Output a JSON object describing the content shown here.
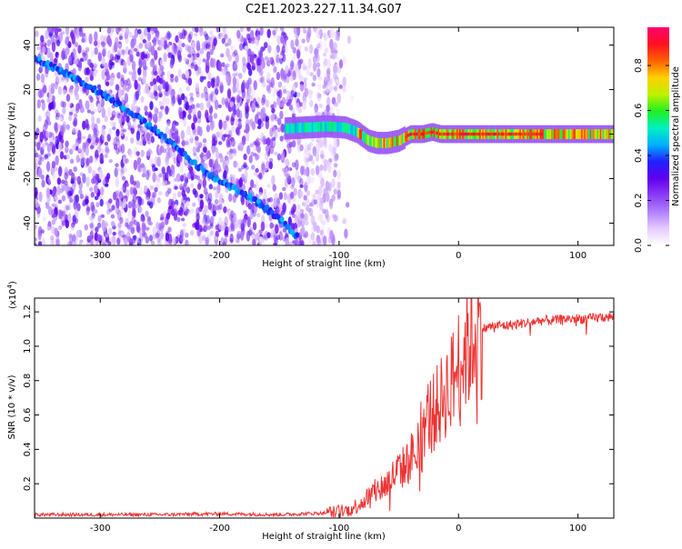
{
  "title": "C2E1.2023.227.11.34.G07",
  "chart_data": [
    {
      "type": "heatmap",
      "xlabel": "Height of straight line (km)",
      "ylabel": "Frequency (Hz)",
      "xlim": [
        -355,
        130
      ],
      "ylim": [
        -50,
        48
      ],
      "xticks": [
        -300,
        -200,
        -100,
        0,
        100
      ],
      "yticks": [
        -40,
        -20,
        0,
        20,
        40
      ],
      "colorbar": {
        "label": "Normalized spectral amplitude",
        "ticks": [
          "0.0",
          "0.2",
          "0.4",
          "0.6",
          "0.8"
        ],
        "range": [
          0,
          0.97
        ],
        "colors": [
          "#ffffff",
          "#e6ccff",
          "#b080ff",
          "#8a3cf5",
          "#6000ee",
          "#2020ff",
          "#00b0ff",
          "#00f0c0",
          "#20f020",
          "#c0f000",
          "#ffd000",
          "#ff6000",
          "#ff1020",
          "#ff0070"
        ]
      },
      "features": {
        "noisy_background_region_x": [
          -355,
          -100
        ],
        "descending_track_points": [
          {
            "x": -355,
            "y": 34
          },
          {
            "x": -320,
            "y": 25
          },
          {
            "x": -280,
            "y": 12
          },
          {
            "x": -250,
            "y": 0
          },
          {
            "x": -210,
            "y": -18
          },
          {
            "x": -175,
            "y": -28
          },
          {
            "x": -150,
            "y": -38
          },
          {
            "x": -135,
            "y": -46
          }
        ],
        "central_line_points": [
          {
            "x": -145,
            "y": 2.5
          },
          {
            "x": -110,
            "y": 3.5
          },
          {
            "x": -95,
            "y": 3
          },
          {
            "x": -85,
            "y": 1
          },
          {
            "x": -75,
            "y": -3
          },
          {
            "x": -68,
            "y": -4
          },
          {
            "x": -60,
            "y": -4
          },
          {
            "x": -50,
            "y": -3
          },
          {
            "x": -40,
            "y": 0
          },
          {
            "x": -30,
            "y": 0
          },
          {
            "x": -22,
            "y": 1
          },
          {
            "x": -15,
            "y": 0
          },
          {
            "x": 0,
            "y": 0
          },
          {
            "x": 50,
            "y": 0
          },
          {
            "x": 100,
            "y": 0
          },
          {
            "x": 130,
            "y": 0
          }
        ]
      }
    },
    {
      "type": "line",
      "xlabel": "Height of straight line (km)",
      "ylabel": "SNR (10 * v/v)",
      "multiplier_label": "(x10",
      "multiplier_exp": "4",
      "multiplier_close": ")",
      "xlim": [
        -355,
        130
      ],
      "ylim": [
        0,
        1.28
      ],
      "xticks": [
        -300,
        -200,
        -100,
        0,
        100
      ],
      "yticks": [
        "0.2",
        "0.4",
        "0.6",
        "0.8",
        "1.0",
        "1.2"
      ],
      "color": "#ee3333",
      "series": [
        {
          "x": [
            -355,
            -300,
            -250,
            -200,
            -150,
            -110,
            -90,
            -80,
            -70,
            -60,
            -50,
            -45,
            -40,
            -35,
            -30,
            -25,
            -20,
            -15,
            -10,
            -5,
            0,
            5,
            10,
            15,
            20,
            30,
            40,
            50,
            60,
            70,
            80,
            90,
            100,
            110,
            120,
            130
          ],
          "values": [
            0.02,
            0.02,
            0.02,
            0.025,
            0.02,
            0.03,
            0.05,
            0.1,
            0.15,
            0.2,
            0.28,
            0.3,
            0.35,
            0.42,
            0.55,
            0.6,
            0.62,
            0.68,
            0.75,
            0.8,
            0.9,
            0.97,
            1.02,
            1.08,
            1.1,
            1.12,
            1.12,
            1.13,
            1.14,
            1.15,
            1.15,
            1.16,
            1.16,
            1.16,
            1.17,
            1.17
          ]
        }
      ]
    }
  ]
}
